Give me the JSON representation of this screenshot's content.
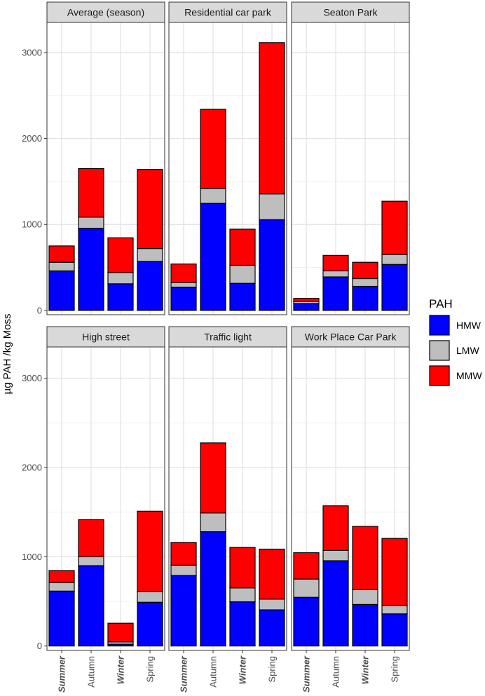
{
  "chart_data": {
    "type": "bar",
    "stacked": true,
    "ylabel": "µg PAH /kg Moss",
    "xlabel": "",
    "ylim": [
      -50,
      3350
    ],
    "yticks": [
      0,
      1000,
      2000,
      3000
    ],
    "yticklabels": [
      "0",
      "1000",
      "2000",
      "3000"
    ],
    "grid": true,
    "categories": [
      "Summer",
      "Autumn",
      "Winter",
      "Spring"
    ],
    "category_italic": [
      true,
      false,
      true,
      false
    ],
    "legend": {
      "title": "PAH",
      "position": "right",
      "entries": [
        {
          "name": "HMW",
          "color": "#0000ff"
        },
        {
          "name": "LMW",
          "color": "#bebebe"
        },
        {
          "name": "MMW",
          "color": "#ff0000"
        }
      ]
    },
    "stack_order": [
      "HMW",
      "LMW",
      "MMW"
    ],
    "colors": {
      "HMW": "#0000ff",
      "LMW": "#bebebe",
      "MMW": "#ff0000"
    },
    "panels": [
      {
        "title": "Average (season)",
        "series": [
          {
            "name": "HMW",
            "values": [
              460,
              955,
              310,
              570
            ]
          },
          {
            "name": "LMW",
            "values": [
              100,
              130,
              130,
              150
            ]
          },
          {
            "name": "MMW",
            "values": [
              190,
              565,
              405,
              920
            ]
          }
        ]
      },
      {
        "title": "Residential car park",
        "series": [
          {
            "name": "HMW",
            "values": [
              270,
              1245,
              315,
              1055
            ]
          },
          {
            "name": "LMW",
            "values": [
              55,
              175,
              210,
              300
            ]
          },
          {
            "name": "MMW",
            "values": [
              215,
              920,
              420,
              1760
            ]
          }
        ]
      },
      {
        "title": "Seaton Park",
        "series": [
          {
            "name": "HMW",
            "values": [
              80,
              390,
              280,
              535
            ]
          },
          {
            "name": "LMW",
            "values": [
              25,
              70,
              90,
              115
            ]
          },
          {
            "name": "MMW",
            "values": [
              35,
              180,
              190,
              620
            ]
          }
        ]
      },
      {
        "title": "High street",
        "series": [
          {
            "name": "HMW",
            "values": [
              615,
              900,
              20,
              490
            ]
          },
          {
            "name": "LMW",
            "values": [
              95,
              100,
              25,
              120
            ]
          },
          {
            "name": "MMW",
            "values": [
              135,
              415,
              210,
              900
            ]
          }
        ]
      },
      {
        "title": "Traffic light",
        "series": [
          {
            "name": "HMW",
            "values": [
              790,
              1280,
              495,
              405
            ]
          },
          {
            "name": "LMW",
            "values": [
              115,
              210,
              155,
              120
            ]
          },
          {
            "name": "MMW",
            "values": [
              255,
              785,
              455,
              560
            ]
          }
        ]
      },
      {
        "title": "Work Place Car Park",
        "series": [
          {
            "name": "HMW",
            "values": [
              545,
              955,
              465,
              360
            ]
          },
          {
            "name": "LMW",
            "values": [
              205,
              115,
              165,
              95
            ]
          },
          {
            "name": "MMW",
            "values": [
              295,
              500,
              710,
              750
            ]
          }
        ]
      }
    ]
  }
}
